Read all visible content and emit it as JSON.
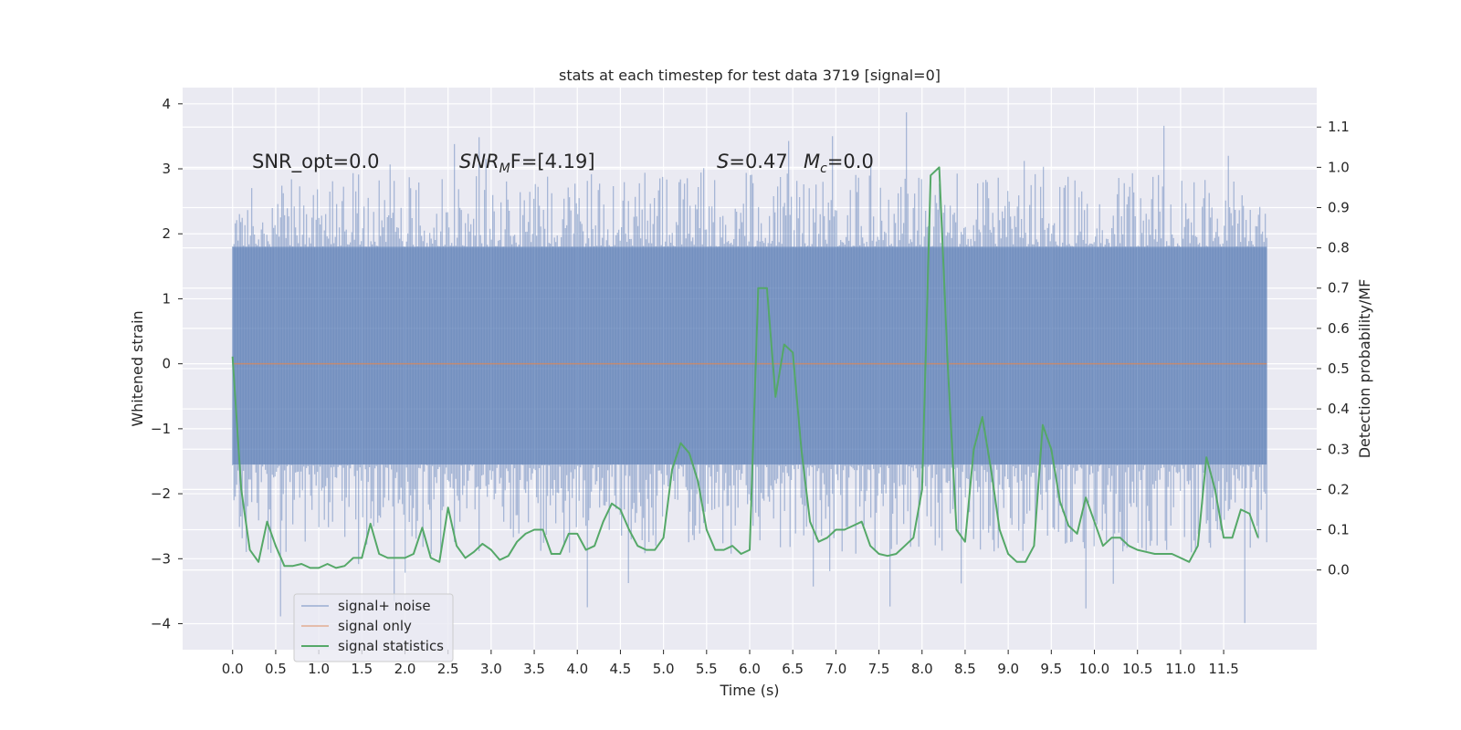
{
  "chart_data": {
    "type": "line",
    "title": "stats at each timestep for test data 3719 [signal=0]",
    "xlabel": "Time (s)",
    "ylabel_left": "Whitened strain",
    "ylabel_right": "Detection probability/MF",
    "x_ticks": [
      0.0,
      0.5,
      1.0,
      1.5,
      2.0,
      2.5,
      3.0,
      3.5,
      4.0,
      4.5,
      5.0,
      5.5,
      6.0,
      6.5,
      7.0,
      7.5,
      8.0,
      8.5,
      9.0,
      9.5,
      10.0,
      10.5,
      11.0,
      11.5
    ],
    "x_tick_labels": [
      "0.0",
      "0.5",
      "1.0",
      "1.5",
      "2.0",
      "2.5",
      "3.0",
      "3.5",
      "4.0",
      "4.5",
      "5.0",
      "5.5",
      "6.0",
      "6.5",
      "7.0",
      "7.5",
      "8.0",
      "8.5",
      "9.0",
      "9.5",
      "10.0",
      "10.5",
      "11.0",
      "11.5"
    ],
    "xlim": [
      -0.58,
      12.58
    ],
    "y_left_ticks": [
      -4,
      -3,
      -2,
      -1,
      0,
      1,
      2,
      3,
      4
    ],
    "y_left_tick_labels": [
      "−4",
      "−3",
      "−2",
      "−1",
      "0",
      "1",
      "2",
      "3",
      "4"
    ],
    "ylim_left": [
      -4.4,
      4.25
    ],
    "y_right_ticks": [
      0.0,
      0.1,
      0.2,
      0.3,
      0.4,
      0.5,
      0.6,
      0.7,
      0.8,
      0.9,
      1.0,
      1.1
    ],
    "y_right_tick_labels": [
      "0.0",
      "0.1",
      "0.2",
      "0.3",
      "0.4",
      "0.5",
      "0.6",
      "0.7",
      "0.8",
      "0.9",
      "1.0",
      "1.1"
    ],
    "ylim_right": [
      -0.198,
      1.198
    ],
    "grid": true,
    "legend_position": "lower-left",
    "annotations": {
      "snr_opt": "SNR_opt=0.0",
      "snr_mf_sym": "SNR",
      "snr_mf_sub": "M",
      "snr_mf_rest": "F=[4.19]",
      "s_sym": "S",
      "s_rest": "=0.47",
      "mc_sym": "M",
      "mc_sub": "c",
      "mc_rest": "=0.0"
    },
    "series": [
      {
        "name": "signal+ noise",
        "color": "#4c72b0",
        "axis": "left",
        "style": "noise-envelope",
        "x_range": [
          0.0,
          12.0
        ],
        "dense_band": [
          -1.55,
          1.8
        ],
        "peak_range": [
          -4.05,
          3.88
        ]
      },
      {
        "name": "signal only",
        "color": "#dd8452",
        "axis": "left",
        "x": [
          0.0,
          12.0
        ],
        "y": [
          0.0,
          0.0
        ]
      },
      {
        "name": "signal statistics",
        "color": "#55a868",
        "axis": "right",
        "x": [
          0.0,
          0.1,
          0.2,
          0.3,
          0.4,
          0.5,
          0.6,
          0.7,
          0.8,
          0.9,
          1.0,
          1.1,
          1.2,
          1.3,
          1.4,
          1.5,
          1.6,
          1.7,
          1.8,
          1.9,
          2.0,
          2.1,
          2.2,
          2.3,
          2.4,
          2.5,
          2.6,
          2.7,
          2.8,
          2.9,
          3.0,
          3.1,
          3.2,
          3.3,
          3.4,
          3.5,
          3.6,
          3.7,
          3.8,
          3.9,
          4.0,
          4.1,
          4.2,
          4.3,
          4.4,
          4.5,
          4.6,
          4.7,
          4.8,
          4.9,
          5.0,
          5.1,
          5.2,
          5.3,
          5.4,
          5.5,
          5.6,
          5.7,
          5.8,
          5.9,
          6.0,
          6.1,
          6.2,
          6.3,
          6.4,
          6.5,
          6.6,
          6.7,
          6.8,
          6.9,
          7.0,
          7.1,
          7.2,
          7.3,
          7.4,
          7.5,
          7.6,
          7.7,
          7.8,
          7.9,
          8.0,
          8.1,
          8.2,
          8.3,
          8.4,
          8.5,
          8.6,
          8.7,
          8.8,
          8.9,
          9.0,
          9.1,
          9.2,
          9.3,
          9.4,
          9.5,
          9.6,
          9.7,
          9.8,
          9.9,
          10.0,
          10.1,
          10.2,
          10.3,
          10.4,
          10.5,
          10.6,
          10.7,
          10.8,
          10.9,
          11.0,
          11.1,
          11.2,
          11.3,
          11.4,
          11.5,
          11.6,
          11.7,
          11.8,
          11.9
        ],
        "y": [
          0.53,
          0.2,
          0.05,
          0.02,
          0.12,
          0.06,
          0.01,
          0.01,
          0.015,
          0.005,
          0.005,
          0.015,
          0.005,
          0.01,
          0.03,
          0.03,
          0.115,
          0.04,
          0.03,
          0.03,
          0.03,
          0.04,
          0.105,
          0.03,
          0.02,
          0.155,
          0.06,
          0.03,
          0.045,
          0.065,
          0.05,
          0.025,
          0.035,
          0.07,
          0.09,
          0.1,
          0.1,
          0.04,
          0.04,
          0.09,
          0.09,
          0.05,
          0.06,
          0.12,
          0.165,
          0.15,
          0.1,
          0.06,
          0.05,
          0.05,
          0.08,
          0.25,
          0.315,
          0.29,
          0.22,
          0.1,
          0.05,
          0.05,
          0.06,
          0.04,
          0.05,
          0.7,
          0.7,
          0.43,
          0.56,
          0.54,
          0.3,
          0.12,
          0.07,
          0.08,
          0.1,
          0.1,
          0.11,
          0.12,
          0.06,
          0.04,
          0.035,
          0.04,
          0.06,
          0.08,
          0.2,
          0.98,
          1.0,
          0.5,
          0.1,
          0.07,
          0.3,
          0.38,
          0.25,
          0.1,
          0.04,
          0.02,
          0.02,
          0.06,
          0.36,
          0.3,
          0.17,
          0.11,
          0.09,
          0.18,
          0.12,
          0.06,
          0.08,
          0.08,
          0.06,
          0.05,
          0.045,
          0.04,
          0.04,
          0.04,
          0.03,
          0.02,
          0.06,
          0.28,
          0.2,
          0.08,
          0.08,
          0.15,
          0.14,
          0.08
        ]
      }
    ]
  }
}
